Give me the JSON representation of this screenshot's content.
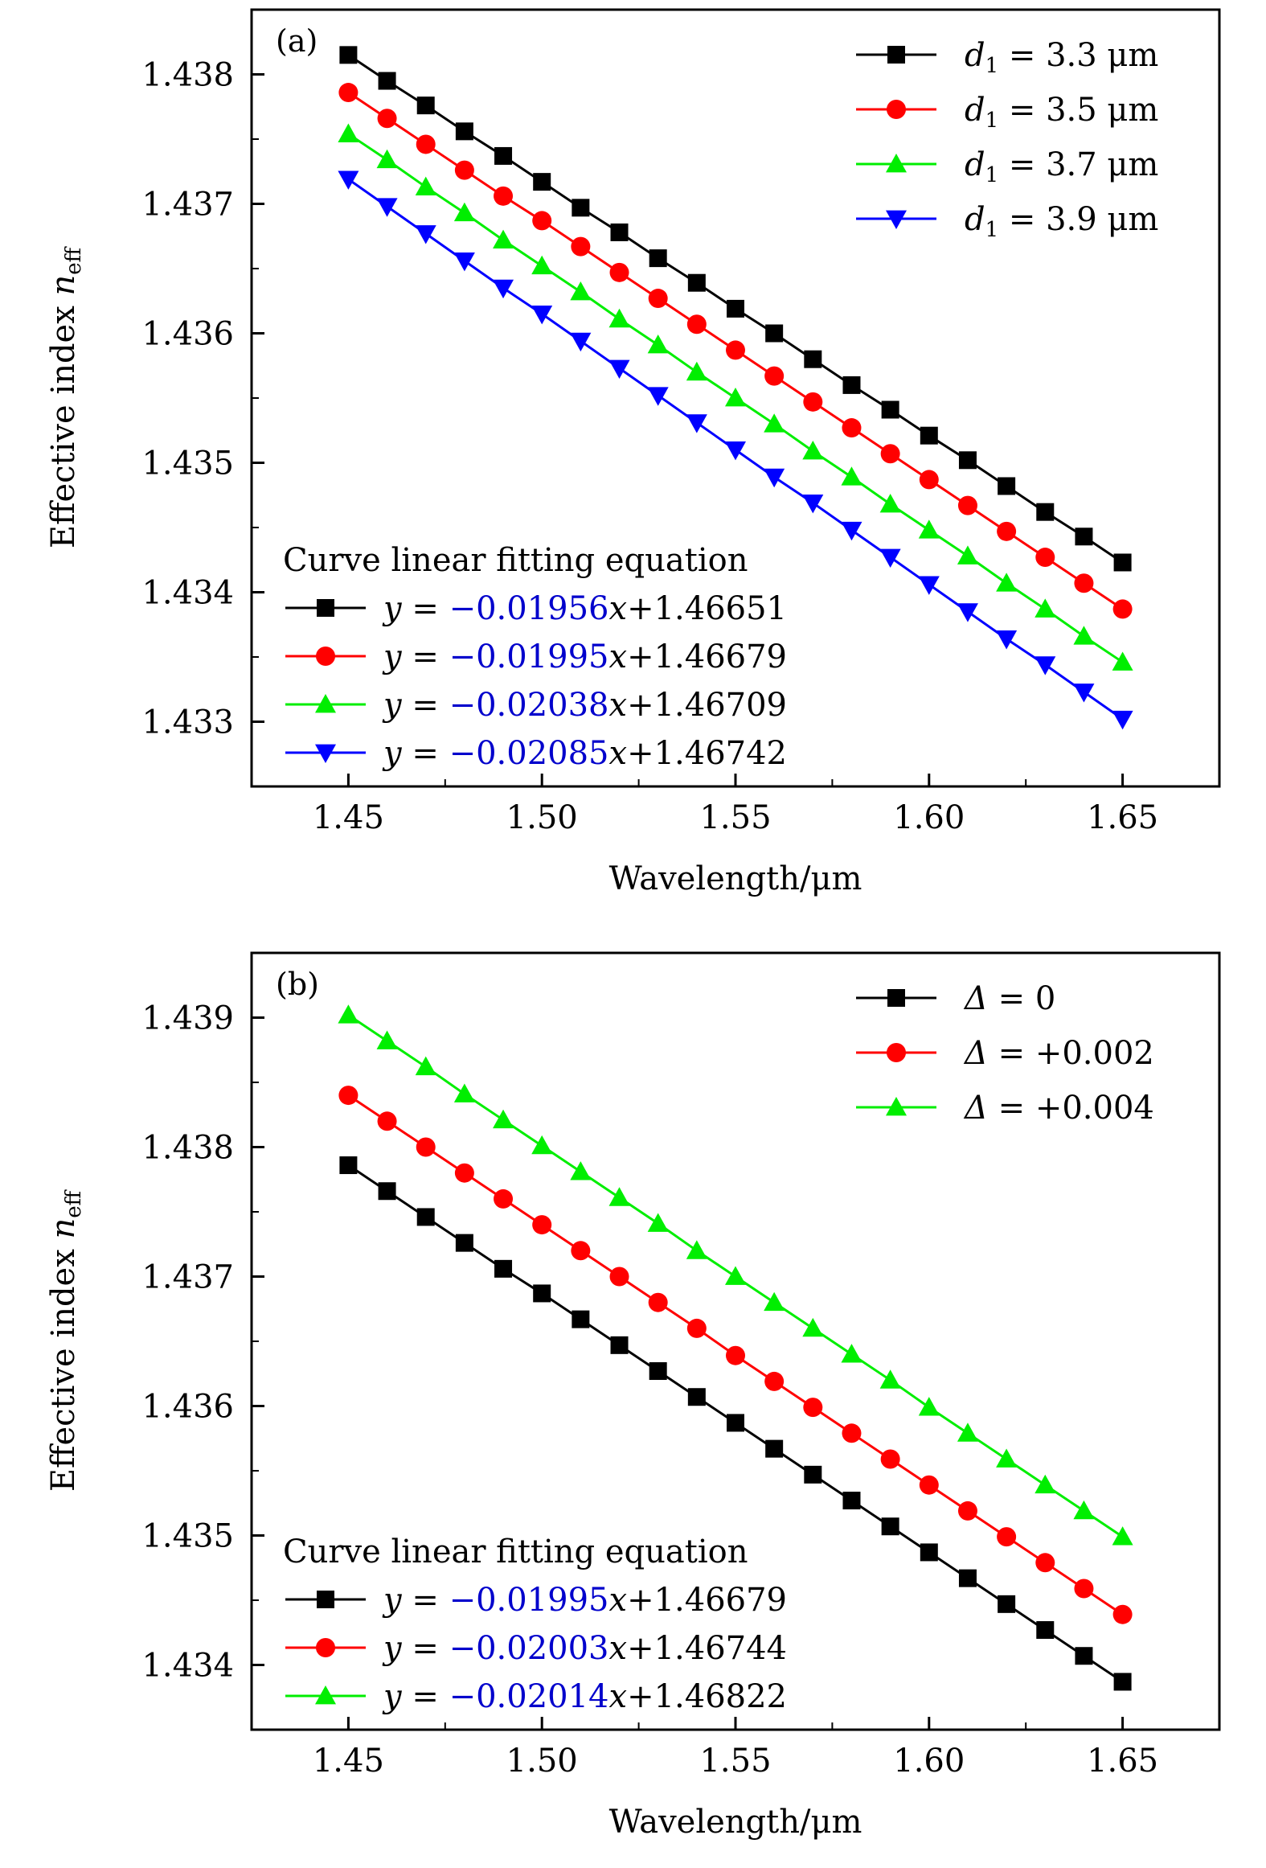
{
  "chart_data": [
    {
      "type": "line",
      "panel_label": "(a)",
      "xlabel": "Wavelength/μm",
      "ylabel": "Effective index n_eff",
      "ylabel_main": "Effective index ",
      "ylabel_var": "n",
      "ylabel_sub": "eff",
      "xlim": [
        1.425,
        1.675
      ],
      "ylim": [
        1.4325,
        1.4385
      ],
      "xticks": [
        1.45,
        1.5,
        1.55,
        1.6,
        1.65
      ],
      "xtick_labels": [
        "1.45",
        "1.50",
        "1.55",
        "1.60",
        "1.65"
      ],
      "yticks": [
        1.433,
        1.434,
        1.435,
        1.436,
        1.437,
        1.438
      ],
      "ytick_labels": [
        "1.433",
        "1.434",
        "1.435",
        "1.436",
        "1.437",
        "1.438"
      ],
      "grid": false,
      "legend_position": "top-right",
      "x": [
        1.45,
        1.46,
        1.47,
        1.48,
        1.49,
        1.5,
        1.51,
        1.52,
        1.53,
        1.54,
        1.55,
        1.56,
        1.57,
        1.58,
        1.59,
        1.6,
        1.61,
        1.62,
        1.63,
        1.64,
        1.65
      ],
      "series": [
        {
          "name": "d1 = 3.3 μm",
          "legend_var": "d",
          "legend_sub": "1",
          "legend_rest": " = 3.3 μm",
          "color": "#000000",
          "marker": "square",
          "slope": -0.01956,
          "intercept": 1.46651,
          "fit_slope": "−0.01956",
          "fit_intercept": "+1.46651",
          "values": [
            1.43815,
            1.43795,
            1.43776,
            1.43756,
            1.43737,
            1.43717,
            1.43697,
            1.43678,
            1.43658,
            1.43639,
            1.43619,
            1.436,
            1.4358,
            1.4356,
            1.43541,
            1.43521,
            1.43502,
            1.43482,
            1.43462,
            1.43443,
            1.43423
          ]
        },
        {
          "name": "d1 = 3.5 μm",
          "legend_var": "d",
          "legend_sub": "1",
          "legend_rest": " = 3.5 μm",
          "color": "#ff0000",
          "marker": "circle",
          "slope": -0.01995,
          "intercept": 1.46679,
          "fit_slope": "−0.01995",
          "fit_intercept": "+1.46679",
          "values": [
            1.43786,
            1.43766,
            1.43746,
            1.43726,
            1.43706,
            1.43687,
            1.43667,
            1.43647,
            1.43627,
            1.43607,
            1.43587,
            1.43567,
            1.43547,
            1.43527,
            1.43507,
            1.43487,
            1.43467,
            1.43447,
            1.43427,
            1.43407,
            1.43387
          ]
        },
        {
          "name": "d1 = 3.7 μm",
          "legend_var": "d",
          "legend_sub": "1",
          "legend_rest": " = 3.7 μm",
          "color": "#00ee00",
          "marker": "triangle-up",
          "slope": -0.02038,
          "intercept": 1.46709,
          "fit_slope": "−0.02038",
          "fit_intercept": "+1.46709",
          "values": [
            1.43754,
            1.43734,
            1.43713,
            1.43693,
            1.43672,
            1.43652,
            1.43632,
            1.43611,
            1.43591,
            1.4357,
            1.4355,
            1.4353,
            1.43509,
            1.43489,
            1.43468,
            1.43448,
            1.43428,
            1.43407,
            1.43387,
            1.43366,
            1.43346
          ]
        },
        {
          "name": "d1 = 3.9 μm",
          "legend_var": "d",
          "legend_sub": "1",
          "legend_rest": " = 3.9 μm",
          "color": "#0000ff",
          "marker": "triangle-down",
          "slope": -0.02085,
          "intercept": 1.46742,
          "fit_slope": "−0.02085",
          "fit_intercept": "+1.46742",
          "values": [
            1.43719,
            1.43698,
            1.43677,
            1.43656,
            1.43635,
            1.43615,
            1.43594,
            1.43573,
            1.43552,
            1.43531,
            1.4351,
            1.43489,
            1.43469,
            1.43448,
            1.43427,
            1.43406,
            1.43385,
            1.43364,
            1.43344,
            1.43323,
            1.43302
          ]
        }
      ],
      "fit_legend_title": "Curve linear fitting equation",
      "fit_prefix": "y",
      "fit_eq": " = ",
      "fit_var": "x"
    },
    {
      "type": "line",
      "panel_label": "(b)",
      "xlabel": "Wavelength/μm",
      "ylabel": "Effective index n_eff",
      "ylabel_main": "Effective index ",
      "ylabel_var": "n",
      "ylabel_sub": "eff",
      "xlim": [
        1.425,
        1.675
      ],
      "ylim": [
        1.4335,
        1.4395
      ],
      "xticks": [
        1.45,
        1.5,
        1.55,
        1.6,
        1.65
      ],
      "xtick_labels": [
        "1.45",
        "1.50",
        "1.55",
        "1.60",
        "1.65"
      ],
      "yticks": [
        1.434,
        1.435,
        1.436,
        1.437,
        1.438,
        1.439
      ],
      "ytick_labels": [
        "1.434",
        "1.435",
        "1.436",
        "1.437",
        "1.438",
        "1.439"
      ],
      "grid": false,
      "legend_position": "top-right",
      "x": [
        1.45,
        1.46,
        1.47,
        1.48,
        1.49,
        1.5,
        1.51,
        1.52,
        1.53,
        1.54,
        1.55,
        1.56,
        1.57,
        1.58,
        1.59,
        1.6,
        1.61,
        1.62,
        1.63,
        1.64,
        1.65
      ],
      "series": [
        {
          "name": "Δ = 0",
          "legend_var": "Δ",
          "legend_sub": "",
          "legend_rest": " =  0",
          "color": "#000000",
          "marker": "square",
          "slope": -0.01995,
          "intercept": 1.46679,
          "fit_slope": "−0.01995",
          "fit_intercept": "+1.46679",
          "values": [
            1.43786,
            1.43766,
            1.43746,
            1.43726,
            1.43706,
            1.43687,
            1.43667,
            1.43647,
            1.43627,
            1.43607,
            1.43587,
            1.43567,
            1.43547,
            1.43527,
            1.43507,
            1.43487,
            1.43467,
            1.43447,
            1.43427,
            1.43407,
            1.43387
          ]
        },
        {
          "name": "Δ = +0.002",
          "legend_var": "Δ",
          "legend_sub": "",
          "legend_rest": " = +0.002",
          "color": "#ff0000",
          "marker": "circle",
          "slope": -0.02003,
          "intercept": 1.46744,
          "fit_slope": "−0.02003",
          "fit_intercept": "+1.46744",
          "values": [
            1.4384,
            1.4382,
            1.438,
            1.4378,
            1.4376,
            1.4374,
            1.4372,
            1.437,
            1.4368,
            1.4366,
            1.43639,
            1.43619,
            1.43599,
            1.43579,
            1.43559,
            1.43539,
            1.43519,
            1.43499,
            1.43479,
            1.43459,
            1.43439
          ]
        },
        {
          "name": "Δ = +0.004",
          "legend_var": "Δ",
          "legend_sub": "",
          "legend_rest": " = +0.004",
          "color": "#00ee00",
          "marker": "triangle-up",
          "slope": -0.02014,
          "intercept": 1.46822,
          "fit_slope": "−0.02014",
          "fit_intercept": "+1.46822",
          "values": [
            1.43902,
            1.43882,
            1.43862,
            1.43841,
            1.43821,
            1.43801,
            1.43781,
            1.43761,
            1.43741,
            1.4372,
            1.437,
            1.4368,
            1.4366,
            1.4364,
            1.4362,
            1.43599,
            1.43579,
            1.43559,
            1.43539,
            1.43519,
            1.43499
          ]
        }
      ],
      "fit_legend_title": "Curve linear fitting equation",
      "fit_prefix": "y",
      "fit_eq": " = ",
      "fit_var": "x"
    }
  ]
}
